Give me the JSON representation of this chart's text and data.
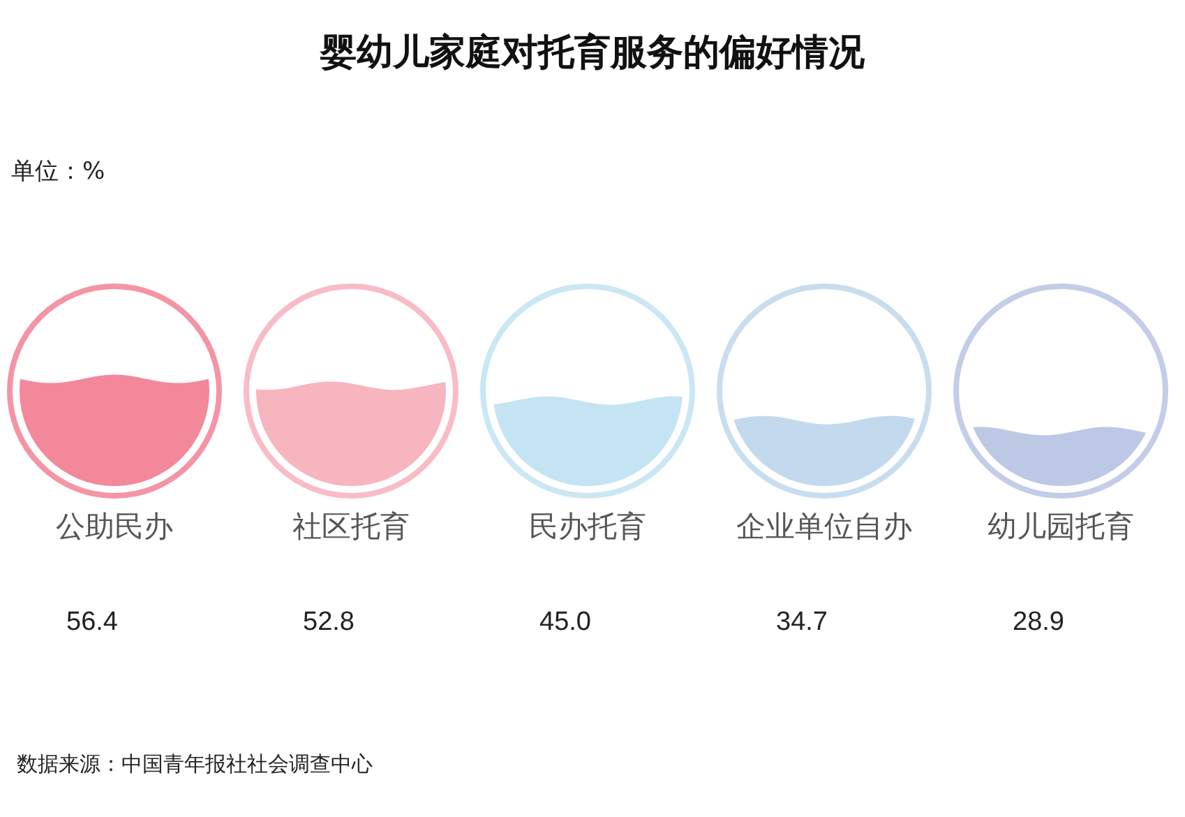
{
  "chart_data": {
    "type": "other",
    "title": "婴幼儿家庭对托育服务的偏好情况",
    "categories": [
      "公助民办",
      "社区托育",
      "民办托育",
      "企业单位自办",
      "幼儿园托育"
    ],
    "values": [
      56.4,
      52.8,
      45.0,
      34.7,
      28.9
    ],
    "colors": [
      "#f3889a",
      "#f7b5c0",
      "#c5e4f3",
      "#c3d9ee",
      "#bdc8e5"
    ],
    "value_labels": [
      "56.4",
      "52.8",
      "45.0",
      "34.7",
      "28.9"
    ],
    "annotations": [
      "单位：%",
      "数据来源：中国青年报社社会调查中心"
    ]
  }
}
